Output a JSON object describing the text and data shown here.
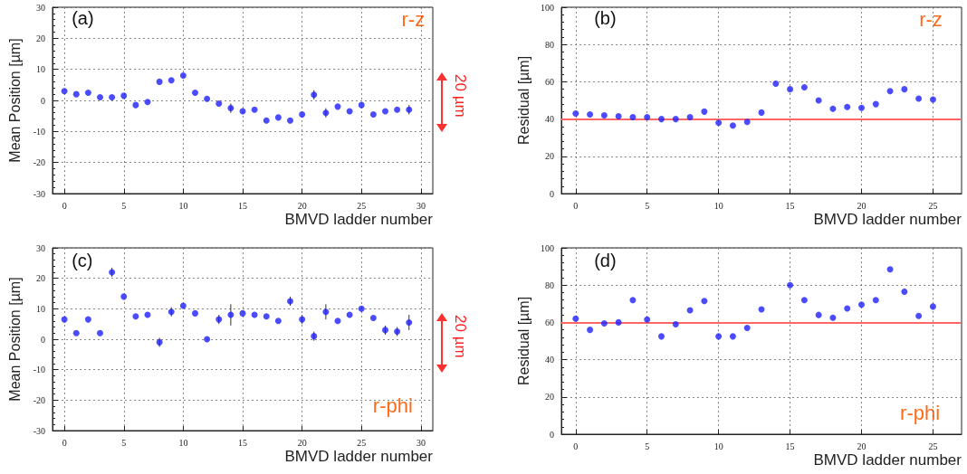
{
  "chart_data": [
    {
      "type": "scatter",
      "xlabel": "BMVD ladder number",
      "ylabel": "Mean Position [µm]",
      "annotations": [
        "(a)",
        "r-z",
        "20 µm"
      ],
      "marker": "circle",
      "grid": true,
      "xlim": [
        -1,
        31
      ],
      "xticks": [
        0,
        5,
        10,
        15,
        20,
        25,
        30
      ],
      "ylim": [
        -30,
        30
      ],
      "yticks": [
        -30,
        -20,
        -10,
        0,
        10,
        20,
        30
      ],
      "series": [
        {
          "color": "#1f1fff",
          "x": [
            0,
            1,
            2,
            3,
            4,
            5,
            6,
            7,
            8,
            9,
            10,
            11,
            12,
            13,
            14,
            15,
            16,
            17,
            18,
            19,
            20,
            21,
            22,
            23,
            24,
            25,
            26,
            27,
            28,
            29
          ],
          "values": [
            3,
            2,
            2.5,
            1,
            1,
            1.5,
            -1.5,
            -0.5,
            6,
            6.5,
            8,
            2.5,
            0.5,
            -1,
            -2.5,
            -3.5,
            -3,
            -6.5,
            -5.5,
            -6.5,
            -4.5,
            1.8,
            -4,
            -2,
            -3.5,
            -1.5,
            -4.5,
            -3.5,
            -3,
            -3
          ],
          "errors": [
            null,
            null,
            null,
            null,
            null,
            null,
            null,
            null,
            null,
            null,
            null,
            null,
            null,
            null,
            1.5,
            null,
            null,
            null,
            null,
            null,
            null,
            1.5,
            1.5,
            null,
            null,
            null,
            null,
            null,
            null,
            1.5
          ]
        }
      ]
    },
    {
      "type": "scatter",
      "xlabel": "BMVD ladder number",
      "ylabel": "Residual [µm]",
      "annotations": [
        "(b)",
        "r-z"
      ],
      "marker": "circle",
      "grid": true,
      "xlim": [
        -1,
        27
      ],
      "xticks": [
        0,
        5,
        10,
        15,
        20,
        25
      ],
      "ylim": [
        0,
        100
      ],
      "yticks": [
        0,
        20,
        40,
        60,
        80,
        100
      ],
      "ref_lines": [
        {
          "axis": "y",
          "value": 40,
          "label": null,
          "color": "#ff6666"
        }
      ],
      "series": [
        {
          "color": "#1f1fff",
          "x": [
            0,
            1,
            2,
            3,
            4,
            5,
            6,
            7,
            8,
            9,
            10,
            11,
            12,
            13,
            14,
            15,
            16,
            17,
            18,
            19,
            20,
            21,
            22,
            23,
            24,
            25
          ],
          "values": [
            43,
            42.5,
            42,
            41.5,
            41,
            41,
            40,
            40,
            41,
            44,
            38,
            36.5,
            38.5,
            43.5,
            59,
            56,
            57,
            50,
            45.5,
            46.5,
            46,
            48,
            55,
            56,
            51,
            50.5
          ]
        }
      ]
    },
    {
      "type": "scatter",
      "xlabel": "BMVD ladder number",
      "ylabel": "Mean Position [µm]",
      "annotations": [
        "(c)",
        "r-phi",
        "20 µm"
      ],
      "marker": "circle",
      "grid": true,
      "xlim": [
        -1,
        31
      ],
      "xticks": [
        0,
        5,
        10,
        15,
        20,
        25,
        30
      ],
      "ylim": [
        -30,
        30
      ],
      "yticks": [
        -30,
        -20,
        -10,
        0,
        10,
        20,
        30
      ],
      "series": [
        {
          "color": "#1f1fff",
          "x": [
            0,
            1,
            2,
            3,
            4,
            5,
            6,
            7,
            8,
            9,
            10,
            11,
            12,
            13,
            14,
            15,
            16,
            17,
            18,
            19,
            20,
            21,
            22,
            23,
            24,
            25,
            26,
            27,
            28,
            29
          ],
          "values": [
            6.5,
            2,
            6.5,
            2,
            22,
            14,
            7.5,
            8,
            -1,
            9,
            11,
            8.5,
            0,
            6.5,
            8,
            8.5,
            8,
            7.5,
            6,
            12.5,
            6.5,
            1,
            9,
            6,
            8,
            10,
            7,
            3,
            2.5,
            5.5
          ],
          "errors": [
            null,
            null,
            null,
            null,
            1.5,
            null,
            null,
            null,
            1.5,
            1.5,
            null,
            null,
            null,
            1.5,
            3.5,
            null,
            null,
            null,
            null,
            1.5,
            1.5,
            1.5,
            2.5,
            null,
            null,
            null,
            null,
            1.5,
            1.5,
            2.5
          ]
        }
      ]
    },
    {
      "type": "scatter",
      "xlabel": "BMVD ladder number",
      "ylabel": "Residual [µm]",
      "annotations": [
        "(d)",
        "r-phi"
      ],
      "marker": "circle",
      "grid": true,
      "xlim": [
        -1,
        27
      ],
      "xticks": [
        0,
        5,
        10,
        15,
        20,
        25
      ],
      "ylim": [
        0,
        100
      ],
      "yticks": [
        0,
        20,
        40,
        60,
        80,
        100
      ],
      "ref_lines": [
        {
          "axis": "y",
          "value": 60,
          "label": null,
          "color": "#ff6666"
        }
      ],
      "series": [
        {
          "color": "#1f1fff",
          "x": [
            0,
            1,
            2,
            3,
            4,
            5,
            6,
            7,
            8,
            9,
            10,
            11,
            12,
            13,
            14,
            15,
            16,
            17,
            18,
            19,
            20,
            21,
            22,
            23,
            24,
            25
          ],
          "values": [
            62,
            56,
            59.5,
            60,
            72,
            61.5,
            52.5,
            59,
            66.5,
            71.5,
            52.5,
            52.5,
            57,
            67,
            null,
            80,
            72,
            64,
            62.5,
            67.5,
            69.5,
            72,
            88.5,
            76.5,
            63.5,
            68.5
          ]
        }
      ]
    }
  ]
}
